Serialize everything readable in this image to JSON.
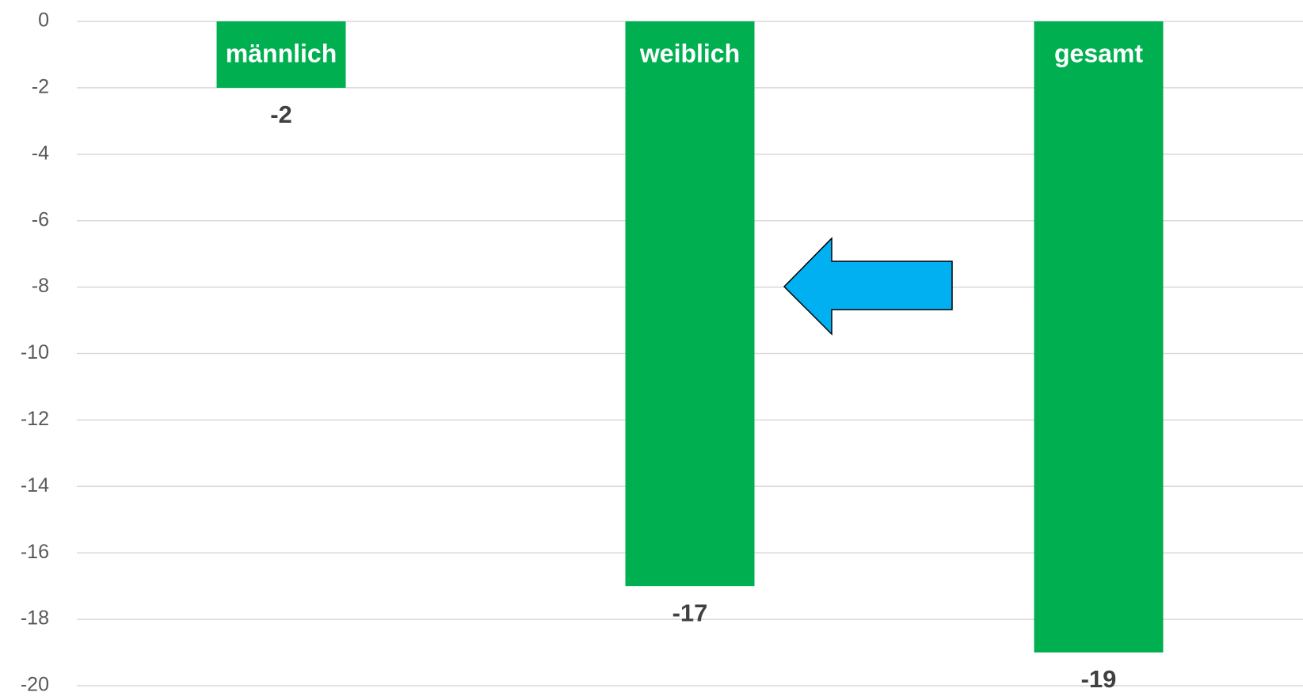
{
  "chart_data": {
    "type": "bar",
    "categories": [
      "männlich",
      "weiblich",
      "gesamt"
    ],
    "values": [
      -2,
      -17,
      -19
    ],
    "color": "#00b050",
    "ylim": [
      -20,
      0
    ],
    "yticks": [
      0,
      -2,
      -4,
      -6,
      -8,
      -10,
      -12,
      -14,
      -16,
      -18,
      -20
    ],
    "grid": true
  }
}
